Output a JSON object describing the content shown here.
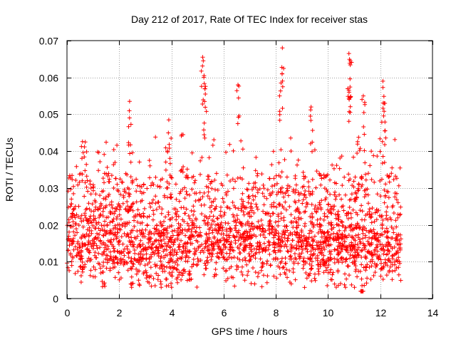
{
  "chart_data": {
    "type": "scatter",
    "title": "Day 212 of 2017, Rate Of TEC Index for receiver stas",
    "xlabel": "GPS time / hours",
    "ylabel": "ROTI / TECUs",
    "xlim": [
      0,
      14
    ],
    "ylim": [
      0,
      0.07
    ],
    "x_ticks": [
      0,
      2,
      4,
      6,
      8,
      10,
      12,
      14
    ],
    "x_tick_labels": [
      "0",
      "2",
      "4",
      "6",
      "8",
      "10",
      "12",
      "14"
    ],
    "y_ticks": [
      0,
      0.01,
      0.02,
      0.03,
      0.04,
      0.05,
      0.06,
      0.07
    ],
    "y_tick_labels": [
      "0",
      "0.01",
      "0.02",
      "0.03",
      "0.04",
      "0.05",
      "0.06",
      "0.07"
    ],
    "grid": true,
    "marker": "+",
    "marker_color": "#ff0000",
    "time_range_hours": [
      0.0,
      12.8
    ],
    "typical_band": [
      0.008,
      0.022
    ],
    "peaks": [
      {
        "x": 5.2,
        "y": 0.0655
      },
      {
        "x": 5.25,
        "y": 0.0605
      },
      {
        "x": 5.3,
        "y": 0.0555
      },
      {
        "x": 6.55,
        "y": 0.058
      },
      {
        "x": 2.4,
        "y": 0.0535
      },
      {
        "x": 8.25,
        "y": 0.068
      },
      {
        "x": 8.2,
        "y": 0.0585
      },
      {
        "x": 9.35,
        "y": 0.052
      },
      {
        "x": 10.8,
        "y": 0.0665
      },
      {
        "x": 10.85,
        "y": 0.0645
      },
      {
        "x": 10.8,
        "y": 0.0565
      },
      {
        "x": 11.35,
        "y": 0.055
      },
      {
        "x": 12.1,
        "y": 0.059
      },
      {
        "x": 12.15,
        "y": 0.053
      },
      {
        "x": 3.9,
        "y": 0.0485
      },
      {
        "x": 0.7,
        "y": 0.0425
      },
      {
        "x": 4.4,
        "y": 0.0445
      },
      {
        "x": 11.3,
        "y": 0.0035
      }
    ]
  }
}
